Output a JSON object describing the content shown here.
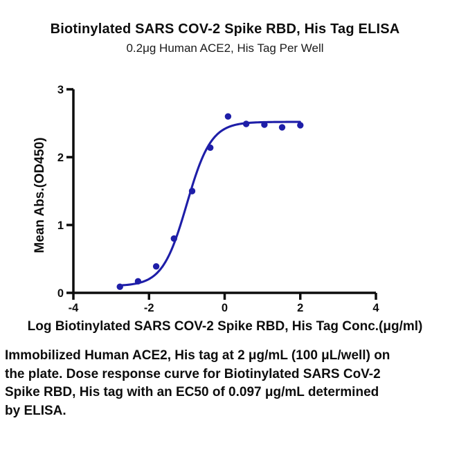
{
  "title": "Biotinylated SARS COV-2 Spike RBD, His Tag ELISA",
  "subtitle": "0.2μg Human ACE2, His Tag Per Well",
  "chart_data": {
    "type": "scatter",
    "title": "Biotinylated SARS COV-2 Spike RBD, His Tag ELISA",
    "subtitle": "0.2μg Human ACE2, His Tag Per Well",
    "xlabel": "Log Biotinylated SARS COV-2 Spike RBD, His Tag Conc.(μg/ml)",
    "ylabel": "Mean Abs.(OD450)",
    "xlim": [
      -4,
      4
    ],
    "ylim": [
      0,
      3
    ],
    "xticks": [
      "-4",
      "-2",
      "0",
      "2",
      "4"
    ],
    "xtick_values": [
      -4,
      -2,
      0,
      2,
      4
    ],
    "yticks": [
      "0",
      "1",
      "2",
      "3"
    ],
    "ytick_values": [
      0,
      1,
      2,
      3
    ],
    "grid": false,
    "legend_position": "none",
    "axis_color": "#0d0d0d",
    "marker_color": "#1e1ea8",
    "line_color": "#1e1ea8",
    "series": [
      {
        "name": "Biotinylated SARS COV-2 Spike RBD, His Tag",
        "x": [
          -2.77,
          -2.29,
          -1.81,
          -1.34,
          -0.86,
          -0.38,
          0.09,
          0.57,
          1.05,
          1.52,
          2.0
        ],
        "y": [
          0.09,
          0.17,
          0.39,
          0.8,
          1.5,
          2.14,
          2.6,
          2.49,
          2.48,
          2.44,
          2.47
        ]
      }
    ],
    "fit": {
      "model": "4PL sigmoid",
      "bottom": 0.1,
      "top": 2.52,
      "logEC50": -1.0,
      "hillslope": 1.35,
      "x_range": [
        -2.77,
        2.0
      ],
      "ec50_label": "0.097 μg/mL"
    }
  },
  "caption": {
    "lines": [
      "Immobilized Human ACE2, His tag at 2 μg/mL (100 μL/well) on",
      "the plate. Dose response curve for Biotinylated SARS CoV-2",
      "Spike RBD, His tag with an EC50 of 0.097 μg/mL determined",
      "by ELISA."
    ]
  }
}
